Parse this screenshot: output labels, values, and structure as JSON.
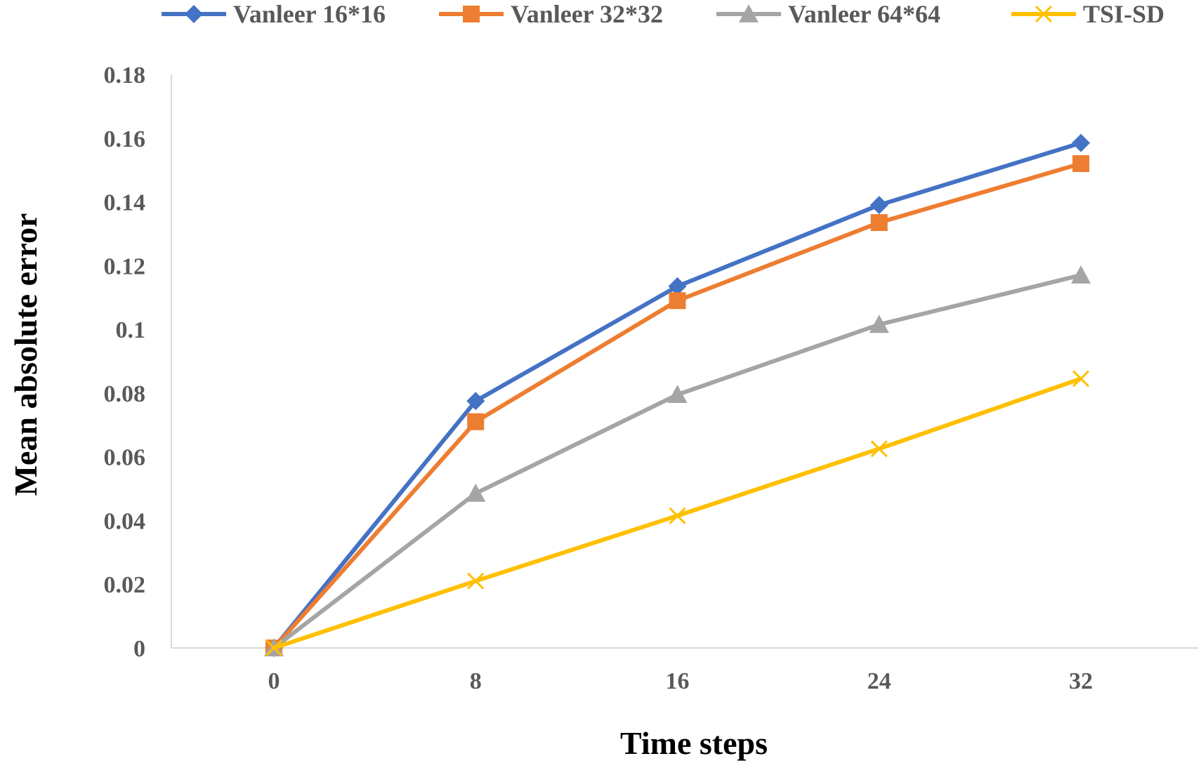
{
  "chart_data": {
    "type": "line",
    "title": "",
    "xlabel": "Time steps",
    "ylabel": "Mean absolute error",
    "categories": [
      "0",
      "8",
      "16",
      "24",
      "32"
    ],
    "x": [
      0,
      8,
      16,
      24,
      32
    ],
    "ylim": [
      0,
      0.18
    ],
    "yticks": [
      "0",
      "0.02",
      "0.04",
      "0.06",
      "0.08",
      "0.1",
      "0.12",
      "0.14",
      "0.16",
      "0.18"
    ],
    "ytick_values": [
      0,
      0.02,
      0.04,
      0.06,
      0.08,
      0.1,
      0.12,
      0.14,
      0.16,
      0.18
    ],
    "grid": false,
    "legend_position": "top",
    "series": [
      {
        "name": "Vanleer 16*16",
        "color": "#4472C4",
        "marker": "diamond",
        "values": [
          0,
          0.0775,
          0.1135,
          0.139,
          0.1585
        ]
      },
      {
        "name": "Vanleer 32*32",
        "color": "#ED7D31",
        "marker": "square",
        "values": [
          0,
          0.071,
          0.109,
          0.1335,
          0.152
        ]
      },
      {
        "name": "Vanleer 64*64",
        "color": "#A5A5A5",
        "marker": "triangle",
        "values": [
          0,
          0.0485,
          0.0795,
          0.1015,
          0.117
        ]
      },
      {
        "name": "TSI-SD",
        "color": "#FFC000",
        "marker": "x",
        "values": [
          0,
          0.021,
          0.0415,
          0.0625,
          0.0845
        ]
      }
    ]
  }
}
